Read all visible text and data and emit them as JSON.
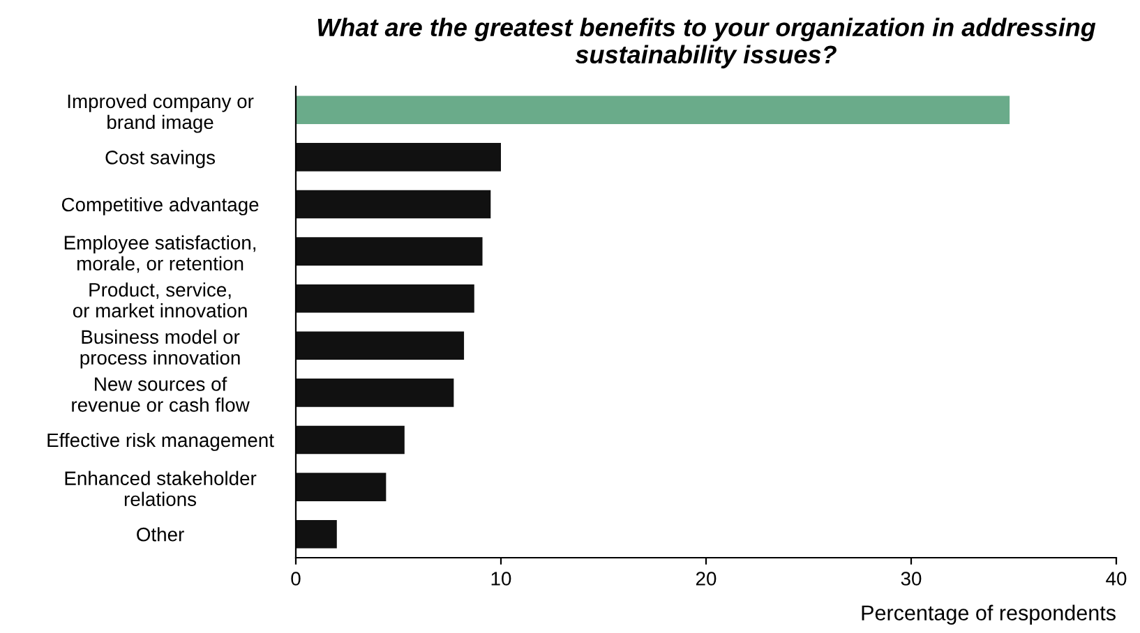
{
  "chart_data": {
    "type": "bar",
    "orientation": "horizontal",
    "title": "What are the greatest benefits to your organization in addressing\nsustainability issues?",
    "xlabel": "Percentage of respondents",
    "categories": [
      "Improved company or\nbrand image",
      "Cost savings",
      "Competitive advantage",
      "Employee satisfaction,\nmorale, or retention",
      "Product, service,\nor market innovation",
      "Business model or\nprocess innovation",
      "New sources of\nrevenue or cash flow",
      "Effective risk management",
      "Enhanced stakeholder\nrelations",
      "Other"
    ],
    "values": [
      34.8,
      10.0,
      9.5,
      9.1,
      8.7,
      8.2,
      7.7,
      5.3,
      4.4,
      2.0
    ],
    "colors": [
      "#6aab8a",
      "#111111",
      "#111111",
      "#111111",
      "#111111",
      "#111111",
      "#111111",
      "#111111",
      "#111111",
      "#111111"
    ],
    "xlim": [
      0,
      40
    ],
    "xticks": [
      0,
      10,
      20,
      30,
      40
    ],
    "grid": false
  }
}
